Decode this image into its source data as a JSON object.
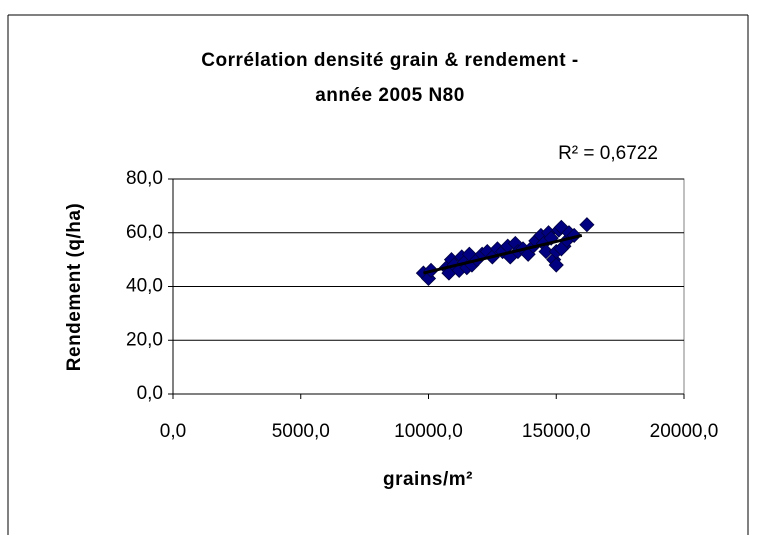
{
  "chart_data": {
    "type": "scatter",
    "title": [
      "Corrélation densité grain & rendement -",
      "année 2005 N80"
    ],
    "x_label": "grains/m²",
    "y_label": "Rendement (q/ha)",
    "annotation": "R² = 0,6722",
    "series": [
      {
        "name": "Rendement",
        "color": "#000080",
        "x": [
          9800,
          10000,
          10100,
          10700,
          10800,
          10900,
          11000,
          11200,
          11300,
          11400,
          11500,
          11600,
          11700,
          11900,
          12100,
          12300,
          12500,
          12700,
          12900,
          13100,
          13200,
          13400,
          13500,
          13700,
          13900,
          14100,
          14200,
          14400,
          14500,
          14600,
          14700,
          14800,
          14900,
          15000,
          15100,
          15200,
          15300,
          15400,
          15500,
          15700,
          16200,
          15000,
          15200
        ],
        "values": [
          45,
          43,
          46,
          47,
          45,
          50,
          48,
          46,
          51,
          49,
          47,
          52,
          48,
          50,
          52,
          53,
          51,
          54,
          53,
          55,
          51,
          56,
          53,
          54,
          52,
          55,
          57,
          59,
          56,
          53,
          60,
          58,
          50,
          48,
          61,
          62,
          55,
          57,
          60,
          59,
          63,
          53,
          54
        ]
      }
    ],
    "trendline": {
      "color": "#000000",
      "x": [
        9800,
        16000
      ],
      "values": [
        45,
        59
      ]
    },
    "xlim": [
      0,
      20000
    ],
    "xticks": [
      {
        "value": 0,
        "label": "0,0"
      },
      {
        "value": 5000,
        "label": "5000,0"
      },
      {
        "value": 10000,
        "label": "10000,0"
      },
      {
        "value": 15000,
        "label": "15000,0"
      },
      {
        "value": 20000,
        "label": "20000,0"
      }
    ],
    "ylim": [
      0,
      80
    ],
    "yticks": [
      {
        "value": 0,
        "label": "0,0"
      },
      {
        "value": 20,
        "label": "20,0"
      },
      {
        "value": 40,
        "label": "40,0"
      },
      {
        "value": 60,
        "label": "60,0"
      },
      {
        "value": 80,
        "label": "80,0"
      }
    ],
    "grid": true
  }
}
